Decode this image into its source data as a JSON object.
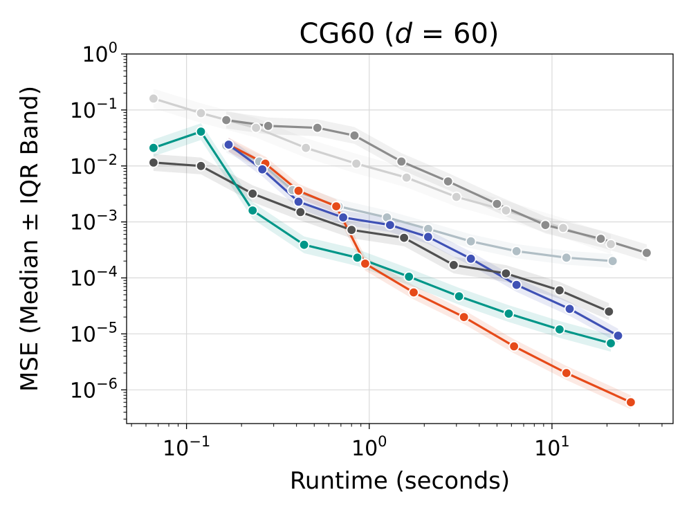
{
  "chart_data": {
    "type": "line",
    "title": {
      "prefix": "CG60 (",
      "var": "d",
      "suffix": " = 60)"
    },
    "xlabel": "Runtime (seconds)",
    "ylabel": "MSE (Median ± IQR Band)",
    "xscale": "log",
    "yscale": "log",
    "xlim": [
      0.047,
      46
    ],
    "ylim": [
      2.5e-07,
      1
    ],
    "grid": true,
    "x_ticks": [
      {
        "value": 0.1,
        "base": "10",
        "exp": "−1"
      },
      {
        "value": 1,
        "base": "10",
        "exp": "0"
      },
      {
        "value": 10,
        "base": "10",
        "exp": "1"
      }
    ],
    "y_ticks": [
      {
        "value": 1,
        "base": "10",
        "exp": "0"
      },
      {
        "value": 0.1,
        "base": "10",
        "exp": "−1"
      },
      {
        "value": 0.01,
        "base": "10",
        "exp": "−2"
      },
      {
        "value": 0.001,
        "base": "10",
        "exp": "−3"
      },
      {
        "value": 0.0001,
        "base": "10",
        "exp": "−4"
      },
      {
        "value": 1e-05,
        "base": "10",
        "exp": "−5"
      },
      {
        "value": 1e-06,
        "base": "10",
        "exp": "−6"
      }
    ],
    "series": [
      {
        "name": "light-gray",
        "color": "#d0d0d0",
        "band_width": 0.35,
        "x": [
          0.066,
          0.12,
          0.24,
          0.45,
          0.85,
          1.6,
          3.0,
          5.6,
          11.5,
          21
        ],
        "y": [
          0.16,
          0.088,
          0.048,
          0.021,
          0.011,
          0.0062,
          0.0028,
          0.0016,
          0.00078,
          0.0004
        ]
      },
      {
        "name": "gray",
        "color": "#8c8c8c",
        "band_width": 0.3,
        "x": [
          0.165,
          0.28,
          0.52,
          0.83,
          1.5,
          2.7,
          5.0,
          9.2,
          18.5,
          33
        ],
        "y": [
          0.066,
          0.052,
          0.048,
          0.035,
          0.012,
          0.0053,
          0.0021,
          0.00088,
          0.0005,
          0.00028
        ]
      },
      {
        "name": "blue-gray",
        "color": "#b0bec5",
        "band_width": 0.25,
        "x": [
          0.165,
          0.25,
          0.38,
          0.68,
          1.25,
          2.1,
          3.6,
          6.4,
          12.0,
          21.5
        ],
        "y": [
          0.023,
          0.012,
          0.0037,
          0.0019,
          0.0012,
          0.00075,
          0.00045,
          0.0003,
          0.00023,
          0.0002
        ]
      },
      {
        "name": "orange-red",
        "color": "#e64a19",
        "band_width": 0.25,
        "x": [
          0.17,
          0.27,
          0.41,
          0.66,
          0.95,
          1.75,
          3.3,
          6.2,
          12.0,
          27
        ],
        "y": [
          0.024,
          0.011,
          0.0036,
          0.0019,
          0.00018,
          5.5e-05,
          2e-05,
          6e-06,
          2e-06,
          6e-07
        ]
      },
      {
        "name": "blue",
        "color": "#3f51b5",
        "band_width": 0.25,
        "x": [
          0.17,
          0.26,
          0.41,
          0.72,
          1.3,
          2.1,
          3.6,
          6.4,
          12.5,
          23
        ],
        "y": [
          0.024,
          0.0087,
          0.0023,
          0.0012,
          0.00088,
          0.00054,
          0.00022,
          7.5e-05,
          2.8e-05,
          9.3e-06
        ]
      },
      {
        "name": "dark-gray",
        "color": "#505050",
        "band_width": 0.3,
        "x": [
          0.066,
          0.12,
          0.23,
          0.42,
          0.8,
          1.55,
          2.9,
          5.6,
          11.0,
          20.5
        ],
        "y": [
          0.0115,
          0.01,
          0.0032,
          0.0015,
          0.00072,
          0.00052,
          0.00017,
          0.00012,
          6e-05,
          2.5e-05
        ]
      },
      {
        "name": "teal",
        "color": "#009688",
        "band_width": 0.3,
        "x": [
          0.066,
          0.12,
          0.23,
          0.44,
          0.86,
          1.65,
          3.1,
          5.8,
          11.0,
          21
        ],
        "y": [
          0.021,
          0.041,
          0.0016,
          0.00039,
          0.00023,
          0.000105,
          4.7e-05,
          2.3e-05,
          1.2e-05,
          6.8e-06
        ]
      }
    ]
  }
}
